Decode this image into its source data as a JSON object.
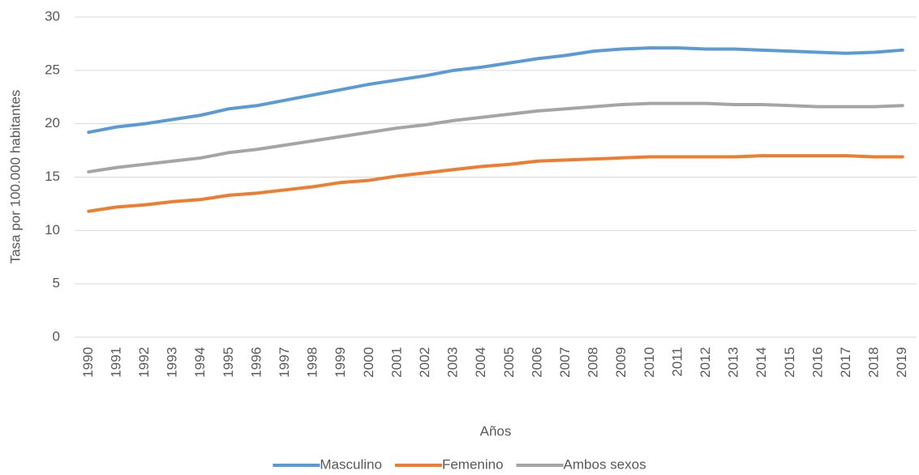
{
  "chart_data": {
    "type": "line",
    "y_label": "Tasa por 100.000 habitantes",
    "x_label": "Años",
    "categories": [
      "1990",
      "1991",
      "1992",
      "1993",
      "1994",
      "1995",
      "1996",
      "1997",
      "1998",
      "1999",
      "2000",
      "2001",
      "2002",
      "2003",
      "2004",
      "2005",
      "2006",
      "2007",
      "2008",
      "2009",
      "2010",
      "2011",
      "2012",
      "2013",
      "2014",
      "2015",
      "2016",
      "2017",
      "2018",
      "2019"
    ],
    "series": [
      {
        "name": "Masculino",
        "color": "#5b9bd5",
        "values": [
          19.2,
          19.7,
          20.0,
          20.4,
          20.8,
          21.4,
          21.7,
          22.2,
          22.7,
          23.2,
          23.7,
          24.1,
          24.5,
          25.0,
          25.3,
          25.7,
          26.1,
          26.4,
          26.8,
          27.0,
          27.1,
          27.1,
          27.0,
          27.0,
          26.9,
          26.8,
          26.7,
          26.6,
          26.7,
          26.9
        ]
      },
      {
        "name": "Femenino",
        "color": "#ed7d31",
        "values": [
          11.8,
          12.2,
          12.4,
          12.7,
          12.9,
          13.3,
          13.5,
          13.8,
          14.1,
          14.5,
          14.7,
          15.1,
          15.4,
          15.7,
          16.0,
          16.2,
          16.5,
          16.6,
          16.7,
          16.8,
          16.9,
          16.9,
          16.9,
          16.9,
          17.0,
          17.0,
          17.0,
          17.0,
          16.9,
          16.9
        ]
      },
      {
        "name": "Ambos sexos",
        "color": "#a5a5a5",
        "values": [
          15.5,
          15.9,
          16.2,
          16.5,
          16.8,
          17.3,
          17.6,
          18.0,
          18.4,
          18.8,
          19.2,
          19.6,
          19.9,
          20.3,
          20.6,
          20.9,
          21.2,
          21.4,
          21.6,
          21.8,
          21.9,
          21.9,
          21.9,
          21.8,
          21.8,
          21.7,
          21.6,
          21.6,
          21.6,
          21.7
        ]
      }
    ],
    "ylim": [
      0,
      30
    ],
    "yticks": [
      0,
      5,
      10,
      15,
      20,
      25,
      30
    ],
    "grid": true,
    "legend": "bottom"
  }
}
